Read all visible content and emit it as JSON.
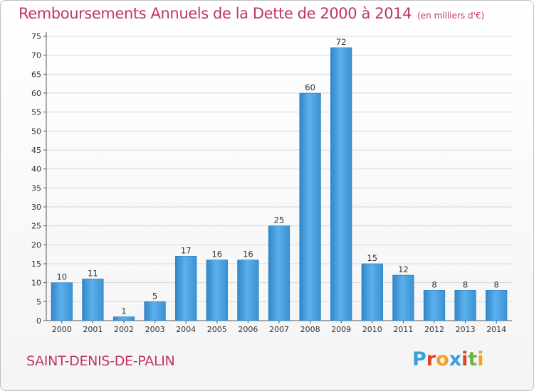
{
  "header": {
    "title": "Remboursements Annuels de la Dette de 2000 à 2014",
    "unit": "(en milliers d'€)"
  },
  "footer": {
    "commune": "SAINT-DENIS-DE-PALIN",
    "logo_text": "Proxiti",
    "logo_colors": [
      "#3aa0dc",
      "#e1442a",
      "#f2a224",
      "#3aa0dc",
      "#e1442a",
      "#6cb33f",
      "#f2a224"
    ]
  },
  "colors": {
    "bar": "#3d95d6",
    "bar_light": "#5cb0ec",
    "title": "#c0346c",
    "grid": "#d8d8d8",
    "text": "#333333"
  },
  "chart_data": {
    "type": "bar",
    "title": "Remboursements Annuels de la Dette de 2000 à 2014",
    "xlabel": "",
    "ylabel": "",
    "categories": [
      "2000",
      "2001",
      "2002",
      "2003",
      "2004",
      "2005",
      "2006",
      "2007",
      "2008",
      "2009",
      "2010",
      "2011",
      "2012",
      "2013",
      "2014"
    ],
    "values": [
      10,
      11,
      1,
      5,
      17,
      16,
      16,
      25,
      60,
      72,
      15,
      12,
      8,
      8,
      8
    ],
    "ylim": [
      0,
      75
    ],
    "yticks": [
      0,
      5,
      10,
      15,
      20,
      25,
      30,
      35,
      40,
      45,
      50,
      55,
      60,
      65,
      70,
      75
    ],
    "grid": true,
    "data_labels": true
  }
}
